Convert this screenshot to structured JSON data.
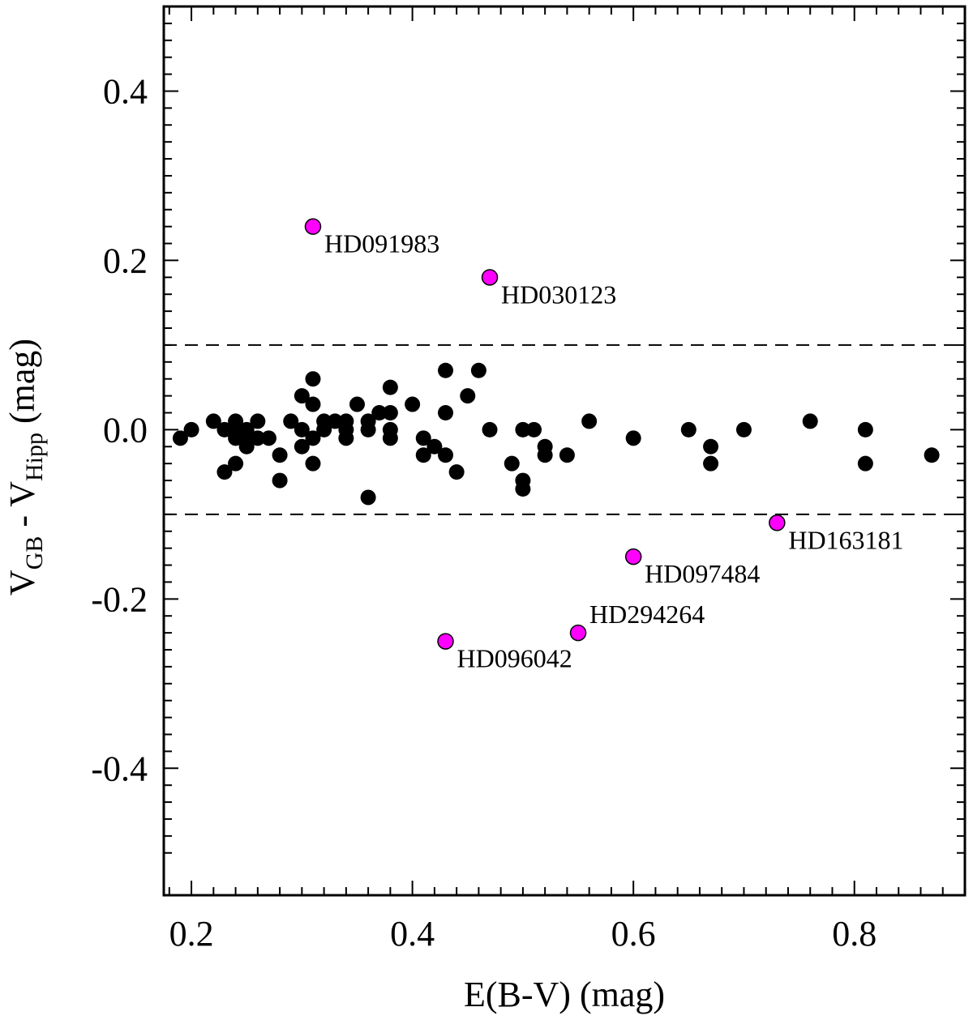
{
  "chart_data": {
    "type": "scatter",
    "title": "",
    "xlabel": "E(B-V) (mag)",
    "ylabel": {
      "main": "V",
      "sub1": "GB",
      "sep": " - V",
      "sub2": "Hipp",
      "unit": " (mag)"
    },
    "xlim": [
      0.175,
      0.9
    ],
    "ylim": [
      -0.55,
      0.5
    ],
    "x_ticks": [
      {
        "value": 0.2,
        "label": "0.2"
      },
      {
        "value": 0.4,
        "label": "0.4"
      },
      {
        "value": 0.6,
        "label": "0.6"
      },
      {
        "value": 0.8,
        "label": "0.8"
      }
    ],
    "y_ticks": [
      {
        "value": 0.4,
        "label": "0.4"
      },
      {
        "value": 0.2,
        "label": "0.2"
      },
      {
        "value": 0.0,
        "label": "0.0"
      },
      {
        "value": -0.2,
        "label": "-0.2"
      },
      {
        "value": -0.4,
        "label": "-0.4"
      }
    ],
    "reference_lines": [
      0.1,
      -0.1
    ],
    "grid": false,
    "series": [
      {
        "color": "#000000",
        "points": [
          [
            0.19,
            -0.01
          ],
          [
            0.2,
            0.0
          ],
          [
            0.22,
            0.01
          ],
          [
            0.23,
            0.0
          ],
          [
            0.23,
            -0.05
          ],
          [
            0.24,
            0.01
          ],
          [
            0.24,
            0.0
          ],
          [
            0.24,
            -0.01
          ],
          [
            0.24,
            -0.04
          ],
          [
            0.25,
            0.0
          ],
          [
            0.25,
            -0.01
          ],
          [
            0.25,
            -0.02
          ],
          [
            0.26,
            0.01
          ],
          [
            0.26,
            -0.01
          ],
          [
            0.27,
            -0.01
          ],
          [
            0.28,
            -0.03
          ],
          [
            0.28,
            -0.06
          ],
          [
            0.29,
            0.01
          ],
          [
            0.3,
            0.04
          ],
          [
            0.3,
            0.0
          ],
          [
            0.3,
            -0.02
          ],
          [
            0.31,
            0.06
          ],
          [
            0.31,
            0.03
          ],
          [
            0.31,
            -0.01
          ],
          [
            0.31,
            -0.04
          ],
          [
            0.32,
            0.01
          ],
          [
            0.32,
            0.0
          ],
          [
            0.33,
            0.01
          ],
          [
            0.34,
            0.01
          ],
          [
            0.34,
            0.0
          ],
          [
            0.34,
            -0.01
          ],
          [
            0.35,
            0.03
          ],
          [
            0.36,
            0.01
          ],
          [
            0.36,
            0.0
          ],
          [
            0.36,
            -0.08
          ],
          [
            0.37,
            0.02
          ],
          [
            0.38,
            0.05
          ],
          [
            0.38,
            0.02
          ],
          [
            0.38,
            0.0
          ],
          [
            0.38,
            -0.01
          ],
          [
            0.4,
            0.03
          ],
          [
            0.41,
            -0.01
          ],
          [
            0.41,
            -0.03
          ],
          [
            0.42,
            -0.02
          ],
          [
            0.43,
            0.07
          ],
          [
            0.43,
            0.02
          ],
          [
            0.43,
            -0.03
          ],
          [
            0.44,
            -0.05
          ],
          [
            0.45,
            0.04
          ],
          [
            0.46,
            0.07
          ],
          [
            0.47,
            0.0
          ],
          [
            0.49,
            -0.04
          ],
          [
            0.5,
            0.0
          ],
          [
            0.5,
            -0.06
          ],
          [
            0.5,
            -0.07
          ],
          [
            0.51,
            0.0
          ],
          [
            0.52,
            -0.02
          ],
          [
            0.52,
            -0.03
          ],
          [
            0.54,
            -0.03
          ],
          [
            0.56,
            0.01
          ],
          [
            0.6,
            -0.01
          ],
          [
            0.65,
            0.0
          ],
          [
            0.67,
            -0.02
          ],
          [
            0.67,
            -0.04
          ],
          [
            0.7,
            0.0
          ],
          [
            0.76,
            0.01
          ],
          [
            0.81,
            0.0
          ],
          [
            0.81,
            -0.04
          ],
          [
            0.87,
            -0.03
          ]
        ]
      },
      {
        "color": "#ff00ff",
        "points": [
          {
            "x": 0.31,
            "y": 0.24,
            "label": "HD091983",
            "anchor": "below-right"
          },
          {
            "x": 0.47,
            "y": 0.18,
            "label": "HD030123",
            "anchor": "below-right"
          },
          {
            "x": 0.73,
            "y": -0.11,
            "label": "HD163181",
            "anchor": "below-right"
          },
          {
            "x": 0.6,
            "y": -0.15,
            "label": "HD097484",
            "anchor": "below-right"
          },
          {
            "x": 0.55,
            "y": -0.24,
            "label": "HD294264",
            "anchor": "above-right"
          },
          {
            "x": 0.43,
            "y": -0.25,
            "label": "HD096042",
            "anchor": "below-right"
          }
        ]
      }
    ]
  }
}
